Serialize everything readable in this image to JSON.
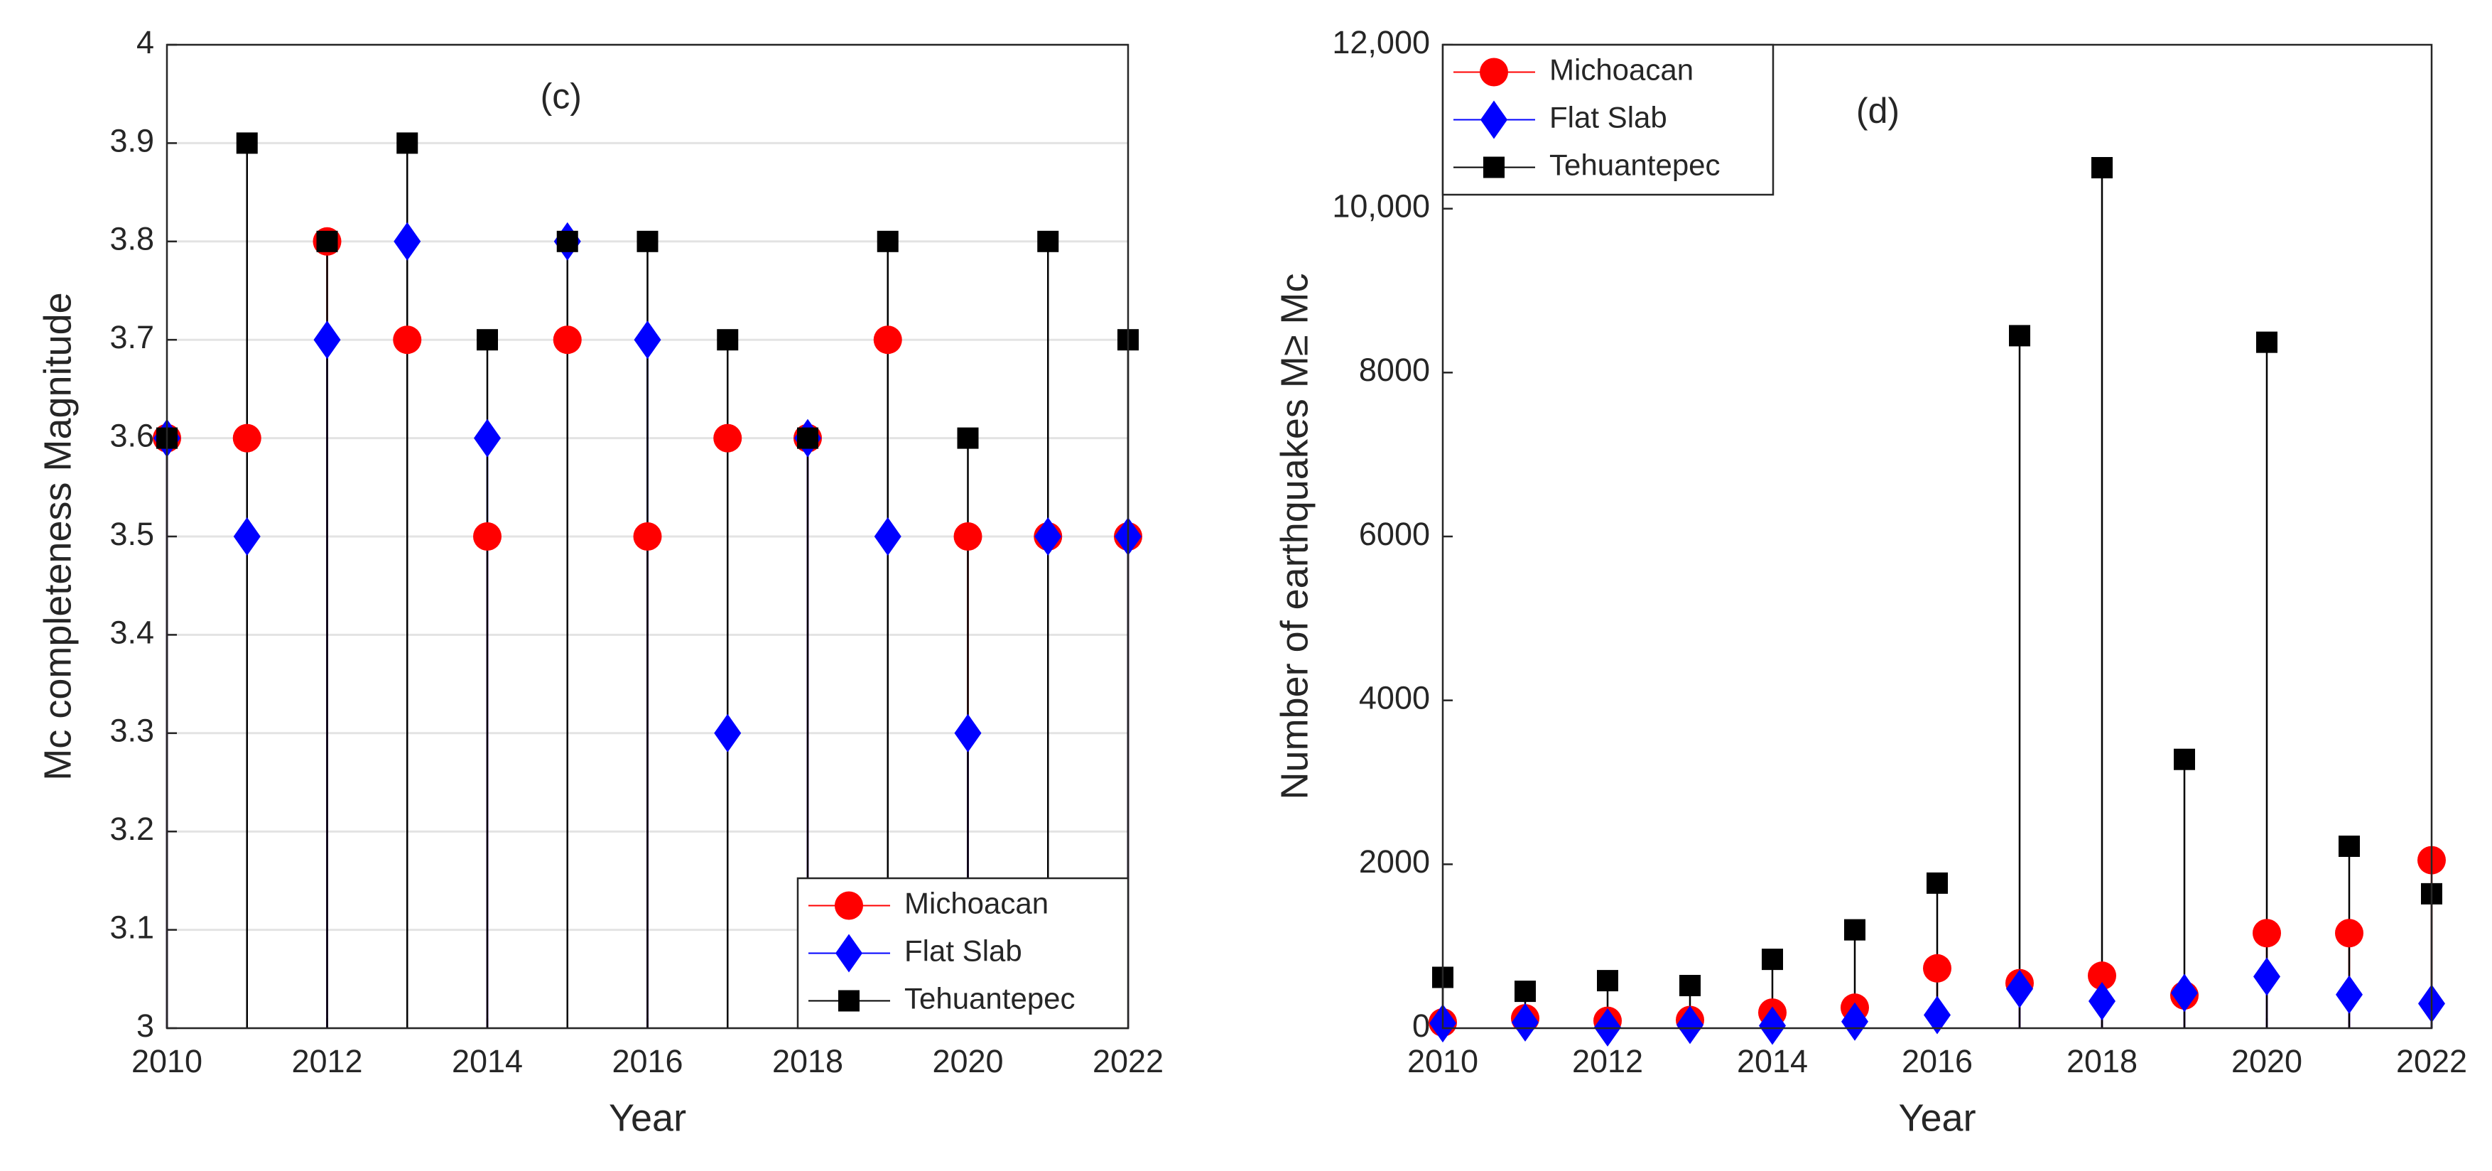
{
  "chart_data": [
    {
      "type": "stem",
      "annotation": "(c)",
      "xlabel": "Year",
      "ylabel": "Mc completeness Magnitude",
      "x": [
        2010,
        2011,
        2012,
        2013,
        2014,
        2015,
        2016,
        2017,
        2018,
        2019,
        2020,
        2021,
        2022
      ],
      "xlim": [
        2010,
        2022
      ],
      "xticks": [
        2010,
        2012,
        2014,
        2016,
        2018,
        2020,
        2022
      ],
      "ylim": [
        3,
        4
      ],
      "yticks": [
        3,
        3.1,
        3.2,
        3.3,
        3.4,
        3.5,
        3.6,
        3.7,
        3.8,
        3.9,
        4
      ],
      "grid": true,
      "legend": "lower right",
      "series": [
        {
          "name": "Michoacan",
          "color": "#ff0000",
          "marker": "circle",
          "values": [
            3.6,
            3.6,
            3.8,
            3.7,
            3.5,
            3.7,
            3.5,
            3.6,
            3.6,
            3.7,
            3.5,
            3.5,
            3.5
          ]
        },
        {
          "name": "Flat Slab",
          "color": "#0000ff",
          "marker": "diamond",
          "values": [
            3.6,
            3.5,
            3.7,
            3.8,
            3.6,
            3.8,
            3.7,
            3.3,
            3.6,
            3.5,
            3.3,
            3.5,
            3.5
          ]
        },
        {
          "name": "Tehuantepec",
          "color": "#000000",
          "marker": "square",
          "values": [
            3.6,
            3.9,
            3.8,
            3.9,
            3.7,
            3.8,
            3.8,
            3.7,
            3.6,
            3.8,
            3.6,
            3.8,
            3.7
          ]
        }
      ]
    },
    {
      "type": "stem",
      "annotation": "(d)",
      "xlabel": "Year",
      "ylabel": "Number of earthquakes M≥ Mc",
      "x": [
        2010,
        2011,
        2012,
        2013,
        2014,
        2015,
        2016,
        2017,
        2018,
        2019,
        2020,
        2021,
        2022
      ],
      "xlim": [
        2010,
        2022
      ],
      "xticks": [
        2010,
        2012,
        2014,
        2016,
        2018,
        2020,
        2022
      ],
      "ylim": [
        0,
        12000
      ],
      "yticks": [
        0,
        2000,
        4000,
        6000,
        8000,
        {
          "value": 10000,
          "label": "10,000"
        },
        {
          "value": 12000,
          "label": "12,000"
        }
      ],
      "grid": false,
      "legend": "upper left",
      "series": [
        {
          "name": "Michoacan",
          "color": "#ff0000",
          "marker": "circle",
          "values": [
            70,
            120,
            90,
            100,
            190,
            250,
            730,
            550,
            640,
            400,
            1160,
            1160,
            2050
          ]
        },
        {
          "name": "Flat Slab",
          "color": "#0000ff",
          "marker": "diamond",
          "values": [
            60,
            70,
            10,
            40,
            30,
            80,
            160,
            480,
            330,
            430,
            630,
            410,
            300
          ]
        },
        {
          "name": "Tehuantepec",
          "color": "#000000",
          "marker": "square",
          "values": [
            620,
            450,
            580,
            520,
            840,
            1200,
            1770,
            8450,
            10500,
            3280,
            8370,
            2220,
            1640
          ]
        }
      ]
    }
  ]
}
